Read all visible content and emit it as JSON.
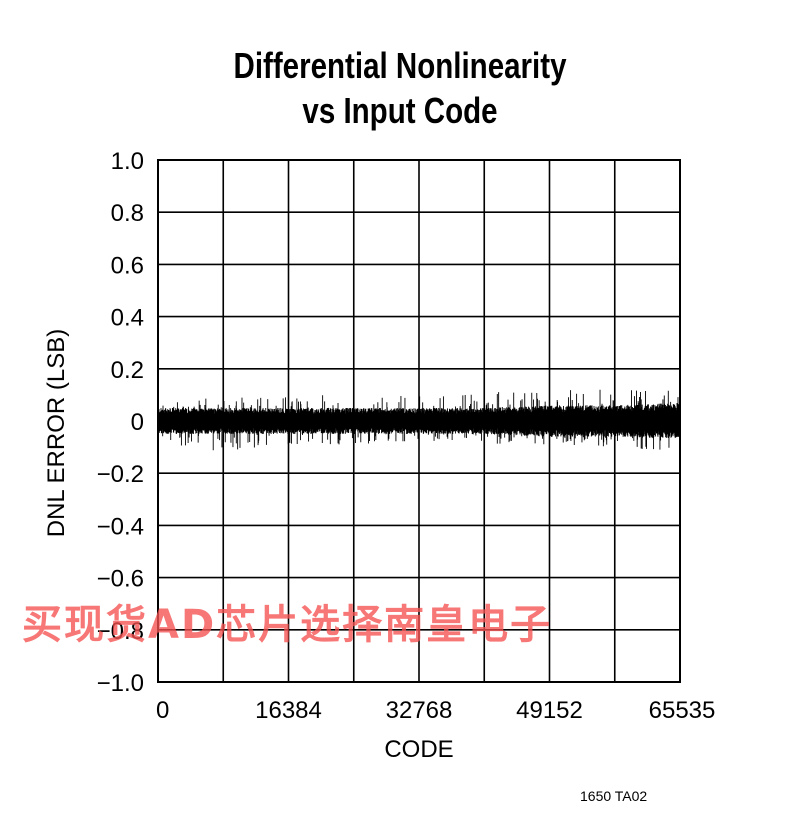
{
  "chart_data": {
    "type": "line",
    "title_line1": "Differential Nonlinearity",
    "title_line2": "vs Input Code",
    "xlabel": "CODE",
    "ylabel": "DNL ERROR (LSB)",
    "xlim": [
      0,
      65535
    ],
    "ylim": [
      -1.0,
      1.0
    ],
    "x_ticks": [
      0,
      16384,
      32768,
      49152,
      65535
    ],
    "x_tick_labels": [
      "0",
      "16384",
      "32768",
      "49152",
      "65535"
    ],
    "y_ticks": [
      1.0,
      0.8,
      0.6,
      0.4,
      0.2,
      0,
      -0.2,
      -0.4,
      -0.6,
      -0.8,
      -1.0
    ],
    "y_tick_labels": [
      "1.0",
      "0.8",
      "0.6",
      "0.4",
      "0.2",
      "0",
      "−0.2",
      "−0.4",
      "−0.6",
      "−0.8",
      "−1.0"
    ],
    "grid": true,
    "x_grid_divisions": 8,
    "series": [
      {
        "color": "#000000",
        "x": [
          0,
          8192,
          16384,
          24576,
          32768,
          40960,
          49152,
          57344,
          65535
        ],
        "y_upper": [
          0.08,
          0.09,
          0.1,
          0.1,
          0.1,
          0.11,
          0.12,
          0.12,
          0.12
        ],
        "y_lower": [
          -0.08,
          -0.12,
          -0.09,
          -0.09,
          -0.08,
          -0.09,
          -0.09,
          -0.1,
          -0.12
        ],
        "y_band_upper": [
          0.05,
          0.05,
          0.05,
          0.05,
          0.05,
          0.05,
          0.06,
          0.06,
          0.07
        ],
        "y_band_lower": [
          -0.05,
          -0.05,
          -0.05,
          -0.05,
          -0.05,
          -0.05,
          -0.06,
          -0.06,
          -0.07
        ]
      }
    ]
  },
  "figure_code": "1650 TA02",
  "watermark_text": "买现货AD芯片选择南皇电子"
}
